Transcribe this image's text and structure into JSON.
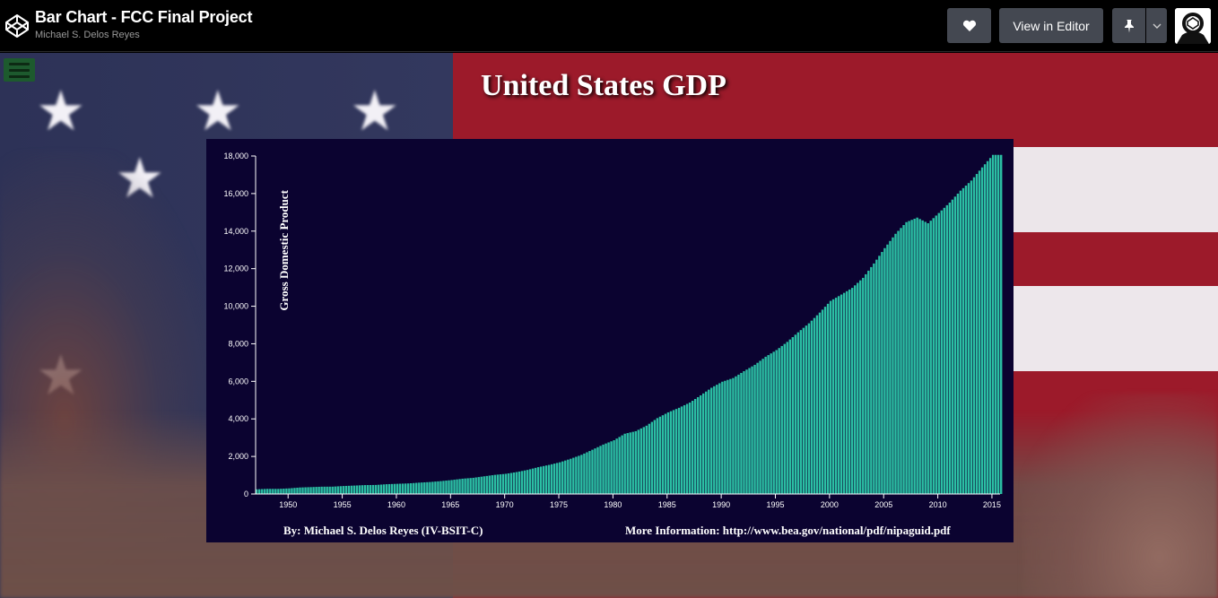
{
  "header": {
    "title": "Bar Chart - FCC Final Project",
    "author": "Michael S. Delos Reyes",
    "view_in_editor_label": "View in Editor",
    "icons": [
      "codepen-logo-icon",
      "heart-icon",
      "pin-icon",
      "chevron-down-icon",
      "avatar"
    ]
  },
  "page": {
    "heading": "United States GDP",
    "menu_icon": "hamburger-menu-icon"
  },
  "colors": {
    "bar": "#2bbfa4",
    "chart_background": "#0b0330",
    "topbar": "#000000",
    "button": "#444851"
  },
  "chart_data": {
    "type": "bar",
    "title": "",
    "xlabel": "",
    "ylabel": "Gross Domestic Product",
    "ylim": [
      0,
      18000
    ],
    "y_ticks": [
      "0",
      "2,000",
      "4,000",
      "6,000",
      "8,000",
      "10,000",
      "12,000",
      "14,000",
      "16,000",
      "18,000"
    ],
    "x_ticks": [
      "1950",
      "1955",
      "1960",
      "1965",
      "1970",
      "1975",
      "1980",
      "1985",
      "1990",
      "1995",
      "2000",
      "2005",
      "2010",
      "2015"
    ],
    "x_range": [
      "1947",
      "2015"
    ],
    "frequency": "quarterly",
    "annual_values": {
      "years": [
        1947,
        1948,
        1949,
        1950,
        1951,
        1952,
        1953,
        1954,
        1955,
        1956,
        1957,
        1958,
        1959,
        1960,
        1961,
        1962,
        1963,
        1964,
        1965,
        1966,
        1967,
        1968,
        1969,
        1970,
        1971,
        1972,
        1973,
        1974,
        1975,
        1976,
        1977,
        1978,
        1979,
        1980,
        1981,
        1982,
        1983,
        1984,
        1985,
        1986,
        1987,
        1988,
        1989,
        1990,
        1991,
        1992,
        1993,
        1994,
        1995,
        1996,
        1997,
        1998,
        1999,
        2000,
        2001,
        2002,
        2003,
        2004,
        2005,
        2006,
        2007,
        2008,
        2009,
        2010,
        2011,
        2012,
        2013,
        2014,
        2015
      ],
      "gdp": [
        249,
        274,
        272,
        300,
        347,
        367,
        389,
        391,
        425,
        449,
        474,
        482,
        522,
        543,
        563,
        605,
        638,
        686,
        743,
        815,
        862,
        942,
        1019,
        1075,
        1168,
        1282,
        1429,
        1549,
        1689,
        1878,
        2086,
        2357,
        2632,
        2863,
        3211,
        3345,
        3638,
        4041,
        4347,
        4590,
        4870,
        5253,
        5658,
        5980,
        6174,
        6539,
        6879,
        7309,
        7664,
        8100,
        8609,
        9089,
        9661,
        10285,
        10622,
        10978,
        11511,
        12275,
        13094,
        13856,
        14478,
        14719,
        14419,
        14964,
        15518,
        16155,
        16692,
        17393,
        18060
      ]
    },
    "footer": {
      "credit": "By: Michael S. Delos Reyes (IV-BSIT-C)",
      "source": "More Information: http://www.bea.gov/national/pdf/nipaguid.pdf"
    }
  }
}
